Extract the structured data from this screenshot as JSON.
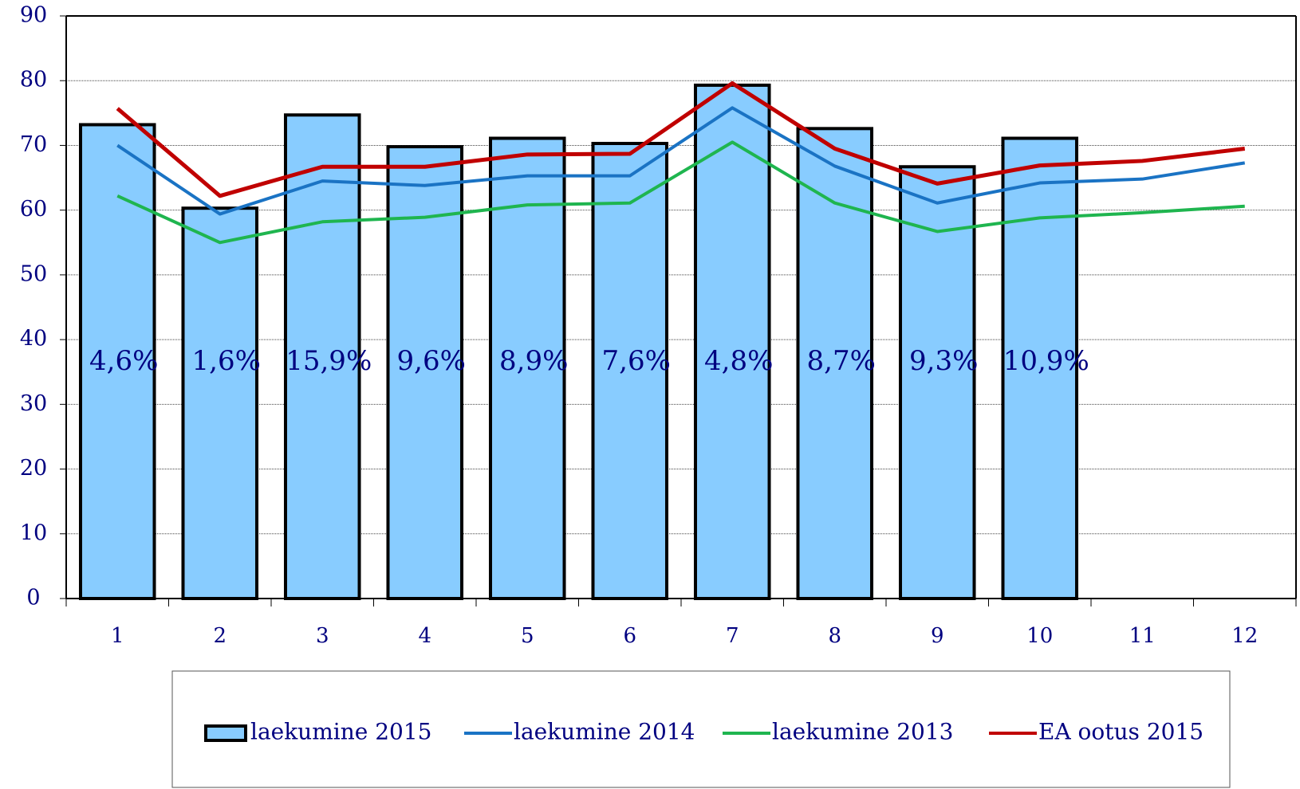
{
  "chart_data": {
    "type": "bar_line",
    "categories": [
      "1",
      "2",
      "3",
      "4",
      "5",
      "6",
      "7",
      "8",
      "9",
      "10",
      "11",
      "12"
    ],
    "series": [
      {
        "name": "laekumine 2015",
        "type": "bar",
        "color": "#88ccff",
        "values": [
          73.2,
          60.3,
          74.7,
          69.8,
          71.1,
          70.3,
          79.3,
          72.6,
          66.7,
          71.1,
          null,
          null
        ]
      },
      {
        "name": "laekumine 2014",
        "type": "line",
        "color": "#1a73c4",
        "values": [
          70,
          59.4,
          64.5,
          63.8,
          65.3,
          65.3,
          75.8,
          66.8,
          61.1,
          64.2,
          64.8,
          67.3
        ]
      },
      {
        "name": "laekumine 2013",
        "type": "line",
        "color": "#1fb54f",
        "values": [
          62.2,
          55,
          58.2,
          58.9,
          60.8,
          61.1,
          70.5,
          61.1,
          56.7,
          58.8,
          59.6,
          60.6
        ]
      },
      {
        "name": "EA ootus 2015",
        "type": "line",
        "color": "#c00000",
        "values": [
          75.7,
          62.2,
          66.7,
          66.7,
          68.6,
          68.7,
          79.6,
          69.5,
          64.1,
          66.9,
          67.6,
          69.5
        ]
      }
    ],
    "bar_labels": [
      "4,6%",
      "1,6%",
      "15,9%",
      "9,6%",
      "8,9%",
      "7,6%",
      "4,8%",
      "8,7%",
      "9,3%",
      "10,9%"
    ],
    "ylim": [
      0,
      90
    ],
    "yticks": [
      0,
      10,
      20,
      30,
      40,
      50,
      60,
      70,
      80,
      90
    ],
    "grid": true,
    "legend": "bottom"
  }
}
